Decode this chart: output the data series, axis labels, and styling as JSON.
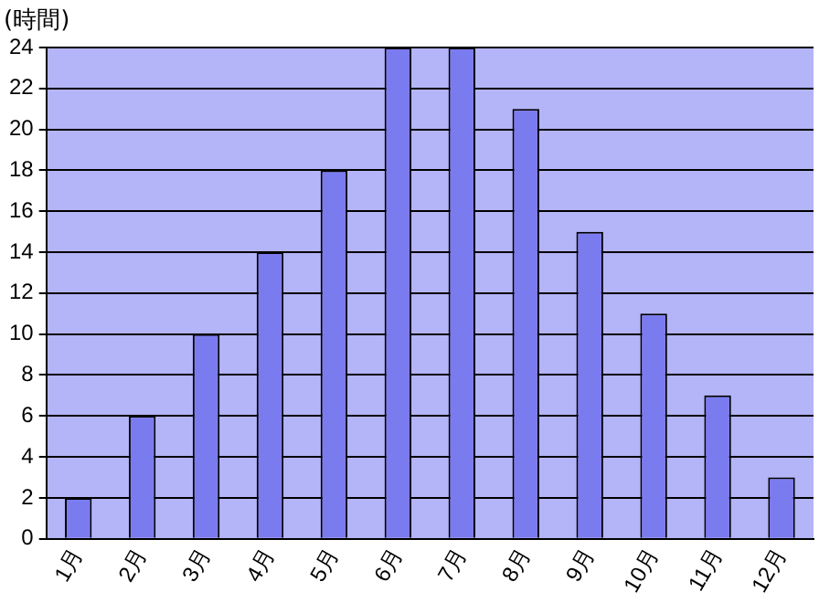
{
  "chart_data": {
    "type": "bar",
    "ylabel": "(時間)",
    "categories": [
      "1月",
      "2月",
      "3月",
      "4月",
      "5月",
      "6月",
      "7月",
      "8月",
      "9月",
      "10月",
      "11月",
      "12月"
    ],
    "values": [
      2,
      6,
      10,
      14,
      18,
      24,
      24,
      21,
      15,
      11,
      7,
      3
    ],
    "color": "#7b7bf0",
    "ylim": [
      0,
      24
    ],
    "yticks": [
      0,
      2,
      4,
      6,
      8,
      10,
      12,
      14,
      16,
      18,
      20,
      22,
      24
    ],
    "grid": "y",
    "legend": false
  }
}
